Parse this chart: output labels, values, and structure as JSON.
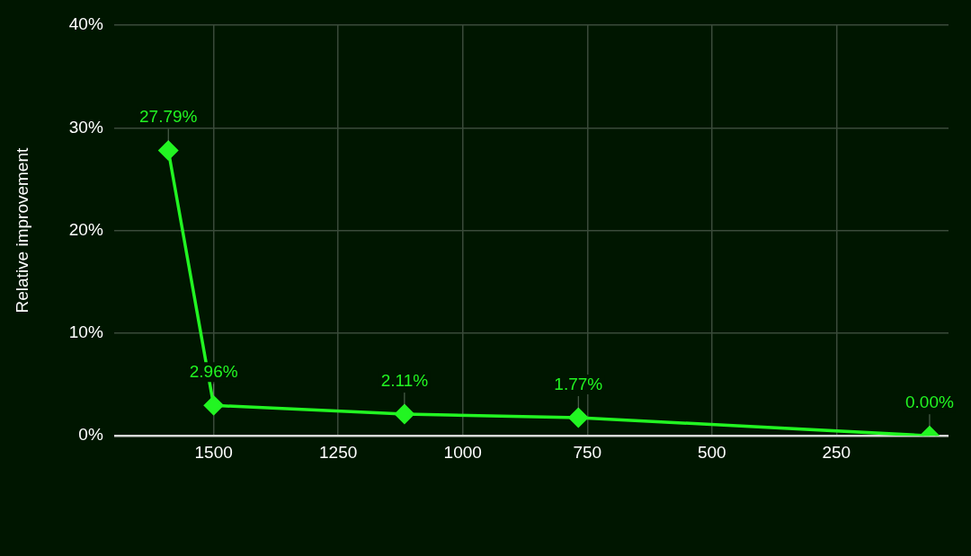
{
  "chart_data": {
    "type": "line",
    "ylabel": "Relative improvement",
    "x": [
      1591,
      1500,
      1117,
      768,
      63
    ],
    "series": [
      {
        "color": "#22f522",
        "values": [
          27.79,
          2.96,
          2.11,
          1.77,
          0.0
        ],
        "value_labels": [
          "27.79%",
          "2.96%",
          "2.11%",
          "1.77%",
          "0.00%"
        ]
      }
    ],
    "xlim": [
      1700,
      25
    ],
    "xticks": [
      1500,
      1250,
      1000,
      750,
      500,
      250
    ],
    "ylim": [
      0,
      40
    ],
    "yticks": [
      {
        "value": 0,
        "label": "0%"
      },
      {
        "value": 10,
        "label": "10%"
      },
      {
        "value": 20,
        "label": "20%"
      },
      {
        "value": 30,
        "label": "30%"
      },
      {
        "value": 40,
        "label": "40%"
      }
    ],
    "grid": true,
    "marker": "diamond",
    "line_style": "solid",
    "legend": false
  }
}
